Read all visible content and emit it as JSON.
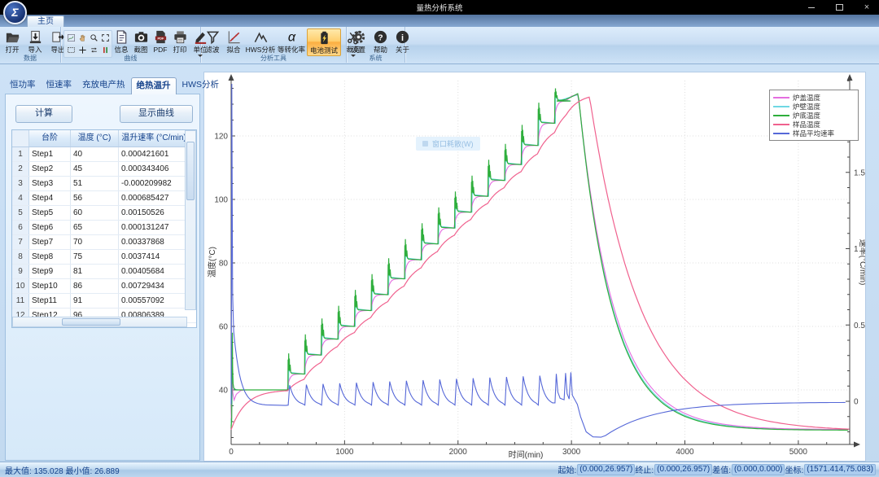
{
  "window": {
    "title": "量热分析系统",
    "controls": {
      "minimize": "minimize",
      "maximize": "maximize",
      "close": "close",
      "close_glyph": "×"
    },
    "logo_glyph": "Σ"
  },
  "ribbon": {
    "home_tab": "主页",
    "groups": [
      {
        "label": "数据",
        "buttons": [
          {
            "label": "打开",
            "icon": "folder-open-icon"
          },
          {
            "label": "导入",
            "icon": "import-icon"
          },
          {
            "label": "导出",
            "icon": "export-icon"
          }
        ]
      },
      {
        "label": "曲线",
        "small_tools_row1": [
          "curve-tool-icon",
          "pan-hand-icon",
          "zoom-icon",
          "zoom-extents-icon"
        ],
        "small_tools_row2": [
          "box-select-icon",
          "crosshair-icon",
          "swap-axes-icon",
          "markers-icon"
        ],
        "buttons": [
          {
            "label": "信息",
            "icon": "info-doc-icon"
          },
          {
            "label": "截图",
            "icon": "camera-icon"
          },
          {
            "label": "PDF",
            "icon": "pdf-icon"
          },
          {
            "label": "打印",
            "icon": "printer-icon"
          },
          {
            "label": "单位",
            "icon": "unit-pen-icon",
            "dropdown": true
          }
        ]
      },
      {
        "label": "分析工具",
        "buttons": [
          {
            "label": "滤波",
            "icon": "filter-icon"
          },
          {
            "label": "拟合",
            "icon": "fit-icon"
          },
          {
            "label": "HWS分析",
            "icon": "hws-icon"
          },
          {
            "label": "等转化率",
            "icon": "alpha-icon"
          },
          {
            "label": "电池测试",
            "icon": "battery-icon",
            "active": true
          },
          {
            "label": "裁剪",
            "icon": "scissors-icon",
            "dropdown": true
          }
        ]
      },
      {
        "label": "系统",
        "buttons": [
          {
            "label": "设置",
            "icon": "gear-icon"
          },
          {
            "label": "帮助",
            "icon": "help-icon"
          },
          {
            "label": "关于",
            "icon": "about-icon"
          }
        ]
      }
    ]
  },
  "sidebar": {
    "tabs": [
      "恒功率",
      "恒速率",
      "充放电产热",
      "绝热温升",
      "HWS分析"
    ],
    "active_tab": "绝热温升",
    "calc_button": "计算",
    "show_curve_button": "显示曲线",
    "table": {
      "headers": [
        "台阶",
        "温度 (°C)",
        "温升速率 (°C/min)"
      ],
      "rows": [
        {
          "num": 1,
          "step": "Step1",
          "temp": "40",
          "rate": "0.000421601"
        },
        {
          "num": 2,
          "step": "Step2",
          "temp": "45",
          "rate": "0.000343406"
        },
        {
          "num": 3,
          "step": "Step3",
          "temp": "51",
          "rate": "-0.000209982"
        },
        {
          "num": 4,
          "step": "Step4",
          "temp": "56",
          "rate": "0.000685427"
        },
        {
          "num": 5,
          "step": "Step5",
          "temp": "60",
          "rate": "0.00150526"
        },
        {
          "num": 6,
          "step": "Step6",
          "temp": "65",
          "rate": "0.000131247"
        },
        {
          "num": 7,
          "step": "Step7",
          "temp": "70",
          "rate": "0.00337868"
        },
        {
          "num": 8,
          "step": "Step8",
          "temp": "75",
          "rate": "0.0037414"
        },
        {
          "num": 9,
          "step": "Step9",
          "temp": "81",
          "rate": "0.00405684"
        },
        {
          "num": 10,
          "step": "Step10",
          "temp": "86",
          "rate": "0.00729434"
        },
        {
          "num": 11,
          "step": "Step11",
          "temp": "91",
          "rate": "0.00557092"
        },
        {
          "num": 12,
          "step": "Step12",
          "temp": "96",
          "rate": "0.00806389"
        }
      ]
    }
  },
  "overlay": {
    "text": "窗口耗散(W)"
  },
  "chart_data": {
    "type": "line",
    "xlabel": "时间(min)",
    "ylabel_left": "温度(°C)",
    "ylabel_right": "速率(°C/min)",
    "xlim": [
      0,
      5450
    ],
    "x_ticks": [
      0,
      1000,
      2000,
      3000,
      4000,
      5000
    ],
    "ylim_left": [
      22.8,
      137.4
    ],
    "y_ticks_left": [
      40,
      60,
      80,
      100,
      120
    ],
    "ylim_right": [
      -0.283,
      2.1
    ],
    "y_ticks_right": [
      0,
      0.5,
      1,
      1.5,
      2
    ],
    "grid": "dotted",
    "legend_position": "top-right",
    "series": [
      {
        "name": "炉盖温度",
        "color": "#e46ee0",
        "axis": "left",
        "role": "furnace_lid"
      },
      {
        "name": "炉壁温度",
        "color": "#6fd8e4",
        "axis": "left",
        "role": "furnace_wall"
      },
      {
        "name": "炉底温度",
        "color": "#2eae3c",
        "axis": "left",
        "role": "furnace_bottom"
      },
      {
        "name": "样品温度",
        "color": "#f0618e",
        "axis": "left",
        "role": "sample"
      },
      {
        "name": "样品平均速率",
        "color": "#5668d8",
        "axis": "right",
        "role": "sample_rate"
      }
    ],
    "staircase": {
      "start_time_min": 500,
      "step_minutes": 147,
      "plateau_temps_c": [
        40,
        45,
        51,
        56,
        60,
        65,
        70,
        75,
        81,
        86,
        91,
        96,
        101,
        106,
        111,
        117,
        124,
        131
      ],
      "peak_temp_c": 135.028,
      "ambient_c": 26.889,
      "heat_end_min": 3060,
      "cool_end_min": 5450
    },
    "rate_curve": {
      "initial_spike": {
        "t": 7,
        "value": 2.08
      },
      "baseline": -0.027,
      "hump_height_range": [
        0.105,
        0.19
      ],
      "dip": {
        "t": 3230,
        "value": -0.235
      }
    }
  },
  "statusbar": {
    "max_label": "最大值:",
    "max_value": "135.028",
    "min_label": "最小值:",
    "min_value": "26.889",
    "right": [
      {
        "label": "起始:",
        "value": "(0.000,26.957)"
      },
      {
        "label": "终止:",
        "value": "(0.000,26.957)"
      },
      {
        "label": "差值:",
        "value": "(0.000,0.000)"
      },
      {
        "label": "坐标:",
        "value": "(1571.414,75.083)"
      }
    ]
  }
}
